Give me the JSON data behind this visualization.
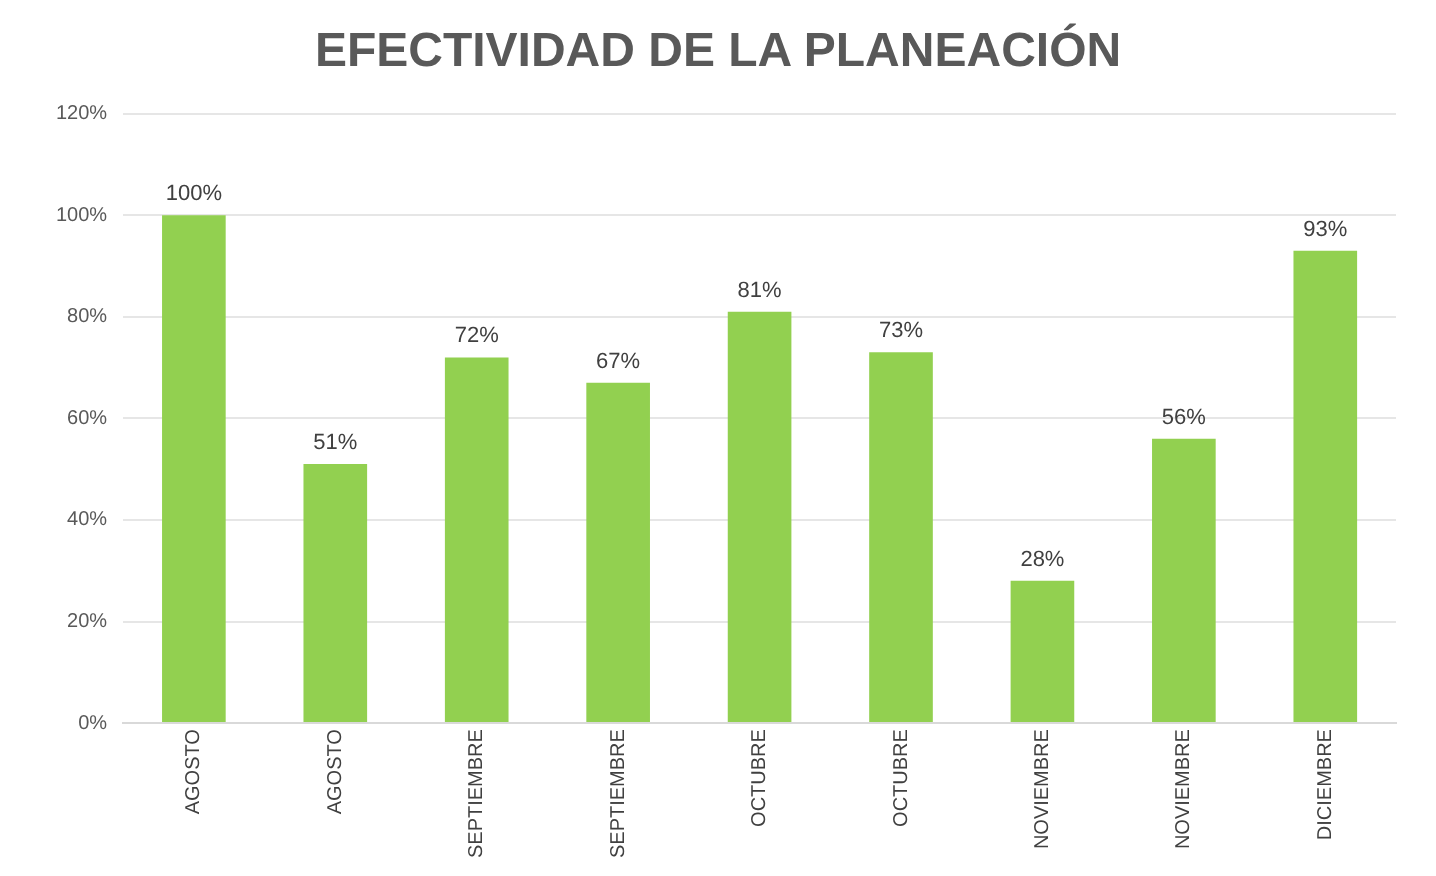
{
  "chart_data": {
    "type": "bar",
    "title": "EFECTIVIDAD DE LA PLANEACIÓN",
    "categories": [
      "AGOSTO",
      "AGOSTO",
      "SEPTIEMBRE",
      "SEPTIEMBRE",
      "OCTUBRE",
      "OCTUBRE",
      "NOVIEMBRE",
      "NOVIEMBRE",
      "DICIEMBRE"
    ],
    "values": [
      100,
      51,
      72,
      67,
      81,
      73,
      28,
      56,
      93
    ],
    "value_labels": [
      "100%",
      "51%",
      "72%",
      "67%",
      "81%",
      "73%",
      "28%",
      "56%",
      "93%"
    ],
    "color": "#92d050",
    "ylim": [
      0,
      120
    ],
    "yticks": [
      {
        "value": 0,
        "label": "0%"
      },
      {
        "value": 20,
        "label": "20%"
      },
      {
        "value": 40,
        "label": "40%"
      },
      {
        "value": 60,
        "label": "60%"
      },
      {
        "value": 80,
        "label": "80%"
      },
      {
        "value": 100,
        "label": "100%"
      },
      {
        "value": 120,
        "label": "120%"
      }
    ],
    "grid": "y",
    "legend": false
  }
}
